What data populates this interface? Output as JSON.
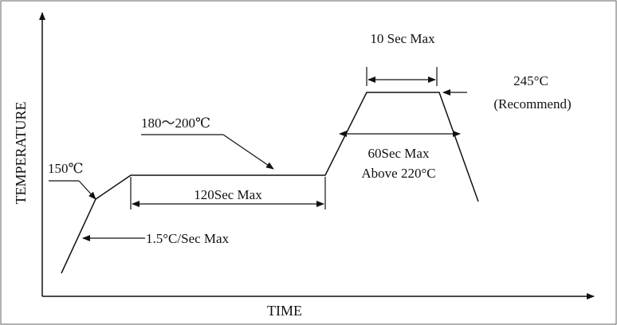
{
  "axes": {
    "x_label": "TIME",
    "y_label": "TEMPERATURE"
  },
  "annotations": {
    "ramp_rate": "1.5°C/Sec Max",
    "preheat_temp": "150℃",
    "soak_range": "180～200℃",
    "soak_time": "120Sec  Max",
    "time_above_line1": "60Sec Max",
    "time_above_line2": "Above 220°C",
    "peak_time": "10 Sec Max",
    "peak_temp_line1": "245°C",
    "peak_temp_line2": "(Recommend)"
  }
}
